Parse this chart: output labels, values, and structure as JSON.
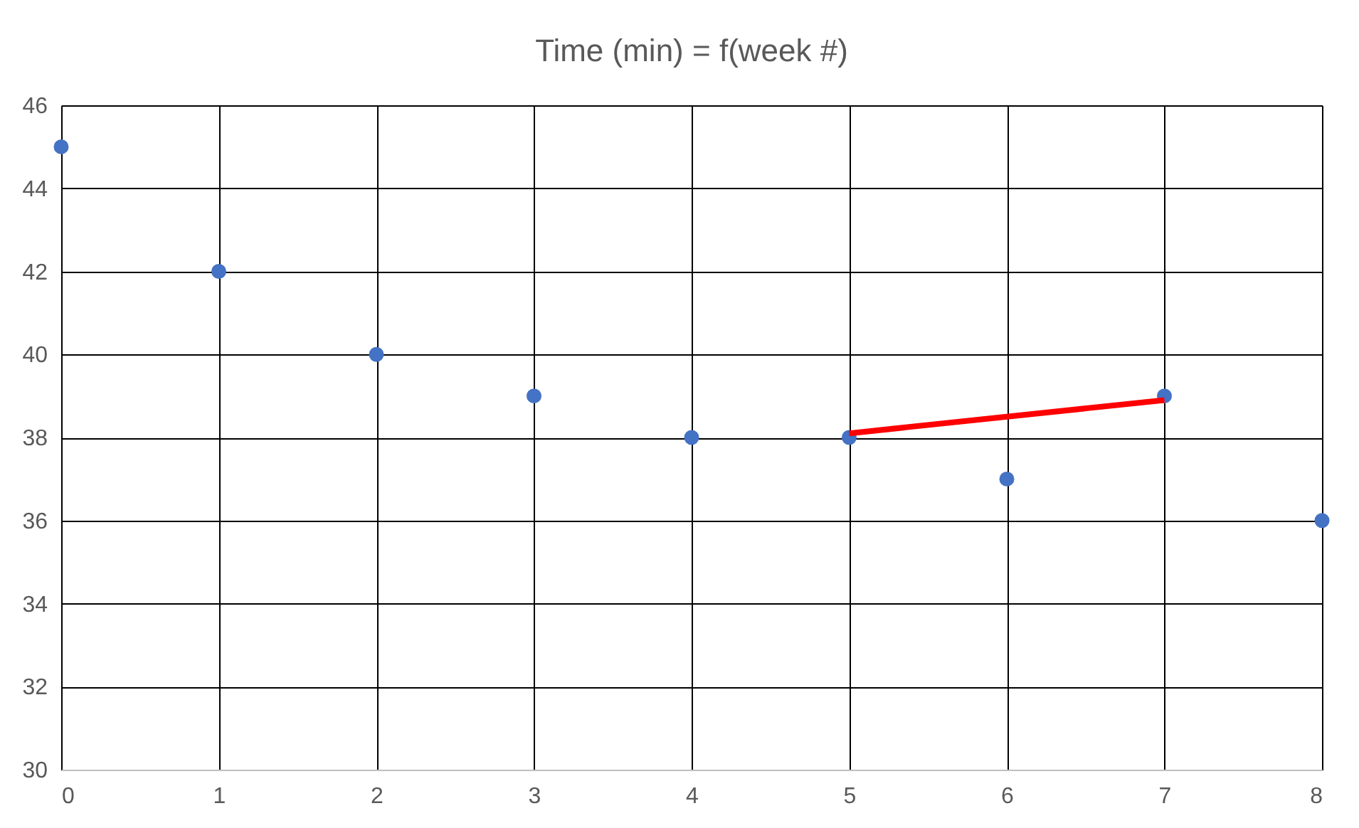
{
  "chart_data": {
    "type": "scatter",
    "title": "Time (min) = f(week #)",
    "xlim": [
      0,
      8
    ],
    "xticks": [
      0,
      1,
      2,
      3,
      4,
      5,
      6,
      7,
      8
    ],
    "ylim": [
      30,
      46
    ],
    "yticks": [
      30,
      32,
      34,
      36,
      38,
      40,
      42,
      44,
      46
    ],
    "grid": true,
    "marker": "circle",
    "series": [
      {
        "color": "#4472c4",
        "x": [
          0,
          1,
          2,
          3,
          4,
          5,
          6,
          7,
          8
        ],
        "values": [
          45,
          42,
          40,
          39,
          38,
          38,
          37,
          39,
          36
        ]
      },
      {
        "type": "line",
        "color": "#ff0000",
        "marker": "none",
        "line_style": "solid",
        "x": [
          5,
          7
        ],
        "values": [
          38.1,
          38.9
        ]
      }
    ]
  }
}
